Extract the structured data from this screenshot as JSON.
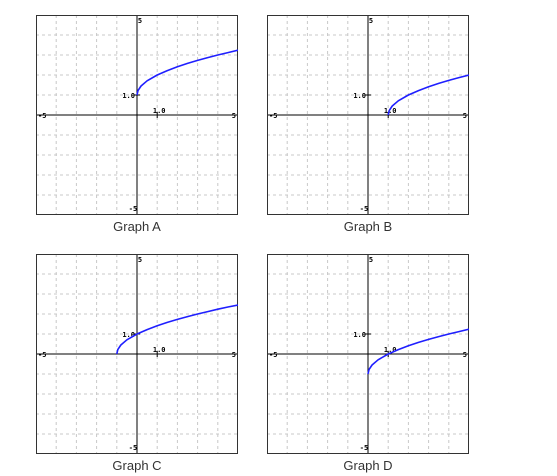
{
  "colors": {
    "curve": "#1f1fff",
    "axis": "#000000",
    "grid": "#c8c8c8",
    "border": "#333333",
    "caption_text": "#333333"
  },
  "chart_data": [
    {
      "type": "line",
      "caption": "Graph A",
      "xlim": [
        -5,
        5
      ],
      "ylim": [
        -5,
        5
      ],
      "grid": true,
      "tick_labels": {
        "x_min": "-5",
        "x_max": "5",
        "y_max": "5",
        "y_min": "-5",
        "x_mark": "1.0",
        "y_mark": "1.0"
      },
      "series": [
        {
          "function": "sqrt(x) + 1",
          "x": [
            0,
            0.05,
            0.2,
            0.5,
            1,
            1.5,
            2,
            2.5,
            3,
            3.5,
            4,
            4.5,
            5
          ],
          "y": [
            1,
            1.22,
            1.45,
            1.71,
            2,
            2.22,
            2.41,
            2.58,
            2.73,
            2.87,
            3,
            3.12,
            3.24
          ]
        }
      ]
    },
    {
      "type": "line",
      "caption": "Graph B",
      "xlim": [
        -5,
        5
      ],
      "ylim": [
        -5,
        5
      ],
      "grid": true,
      "tick_labels": {
        "x_min": "-5",
        "x_max": "5",
        "y_max": "5",
        "y_min": "-5",
        "x_mark": "1.0",
        "y_mark": "1.0"
      },
      "series": [
        {
          "function": "sqrt(x - 1)",
          "x": [
            1,
            1.05,
            1.2,
            1.5,
            2,
            2.5,
            3,
            3.5,
            4,
            4.5,
            5
          ],
          "y": [
            0,
            0.22,
            0.45,
            0.71,
            1,
            1.22,
            1.41,
            1.58,
            1.73,
            1.87,
            2
          ]
        }
      ]
    },
    {
      "type": "line",
      "caption": "Graph C",
      "xlim": [
        -5,
        5
      ],
      "ylim": [
        -5,
        5
      ],
      "grid": true,
      "tick_labels": {
        "x_min": "-5",
        "x_max": "5",
        "y_max": "5",
        "y_min": "-5",
        "x_mark": "1.0",
        "y_mark": "1.0"
      },
      "series": [
        {
          "function": "sqrt(x + 1)",
          "x": [
            -1,
            -0.95,
            -0.8,
            -0.5,
            0,
            0.5,
            1,
            1.5,
            2,
            2.5,
            3,
            3.5,
            4,
            4.5,
            5
          ],
          "y": [
            0,
            0.22,
            0.45,
            0.71,
            1,
            1.22,
            1.41,
            1.58,
            1.73,
            1.87,
            2,
            2.12,
            2.24,
            2.35,
            2.45
          ]
        }
      ]
    },
    {
      "type": "line",
      "caption": "Graph D",
      "xlim": [
        -5,
        5
      ],
      "ylim": [
        -5,
        5
      ],
      "grid": true,
      "tick_labels": {
        "x_min": "-5",
        "x_max": "5",
        "y_max": "5",
        "y_min": "-5",
        "x_mark": "1.0",
        "y_mark": "1.0"
      },
      "series": [
        {
          "function": "sqrt(x) - 1",
          "x": [
            0,
            0.05,
            0.2,
            0.5,
            1,
            1.5,
            2,
            2.5,
            3,
            3.5,
            4,
            4.5,
            5
          ],
          "y": [
            -1,
            -0.78,
            -0.55,
            -0.29,
            0,
            0.22,
            0.41,
            0.58,
            0.73,
            0.87,
            1,
            1.12,
            1.24
          ]
        }
      ]
    }
  ]
}
